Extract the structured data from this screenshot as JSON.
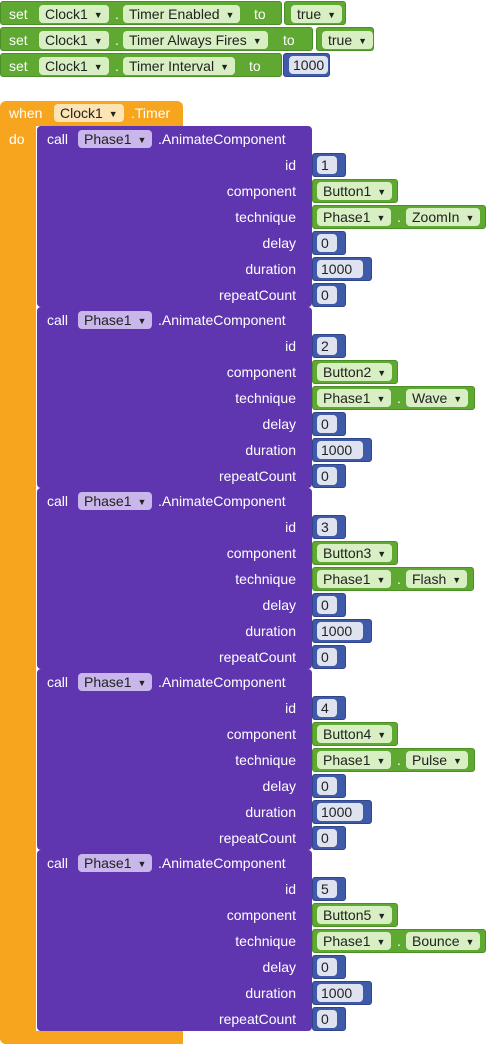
{
  "setters": [
    {
      "set_label": "set",
      "component": "Clock1",
      "property": "Timer Enabled",
      "to_label": "to",
      "value": "true"
    },
    {
      "set_label": "set",
      "component": "Clock1",
      "property": "Timer Always Fires",
      "to_label": "to",
      "value": "true"
    },
    {
      "set_label": "set",
      "component": "Clock1",
      "property": "Timer Interval",
      "to_label": "to",
      "value": "1000"
    }
  ],
  "event": {
    "when_label": "when",
    "component": "Clock1",
    "event_name": ".Timer",
    "do_label": "do"
  },
  "param_labels": {
    "id": "id",
    "component": "component",
    "technique": "technique",
    "delay": "delay",
    "duration": "duration",
    "repeatCount": "repeatCount"
  },
  "calls": [
    {
      "call_label": "call",
      "component": "Phase1",
      "method": ".AnimateComponent",
      "id": "1",
      "target": "Button1",
      "technique_component": "Phase1",
      "technique": "ZoomIn",
      "delay": "0",
      "duration": "1000",
      "repeatCount": "0"
    },
    {
      "call_label": "call",
      "component": "Phase1",
      "method": ".AnimateComponent",
      "id": "2",
      "target": "Button2",
      "technique_component": "Phase1",
      "technique": "Wave",
      "delay": "0",
      "duration": "1000",
      "repeatCount": "0"
    },
    {
      "call_label": "call",
      "component": "Phase1",
      "method": ".AnimateComponent",
      "id": "3",
      "target": "Button3",
      "technique_component": "Phase1",
      "technique": "Flash",
      "delay": "0",
      "duration": "1000",
      "repeatCount": "0"
    },
    {
      "call_label": "call",
      "component": "Phase1",
      "method": ".AnimateComponent",
      "id": "4",
      "target": "Button4",
      "technique_component": "Phase1",
      "technique": "Pulse",
      "delay": "0",
      "duration": "1000",
      "repeatCount": "0"
    },
    {
      "call_label": "call",
      "component": "Phase1",
      "method": ".AnimateComponent",
      "id": "5",
      "target": "Button5",
      "technique_component": "Phase1",
      "technique": "Bounce",
      "delay": "0",
      "duration": "1000",
      "repeatCount": "0"
    }
  ],
  "colors": {
    "setter": "#5fa832",
    "event": "#f7a51f",
    "call": "#5f35b0",
    "number": "#3f5aa8"
  },
  "icons": {
    "dropdown": "triangle-down"
  }
}
